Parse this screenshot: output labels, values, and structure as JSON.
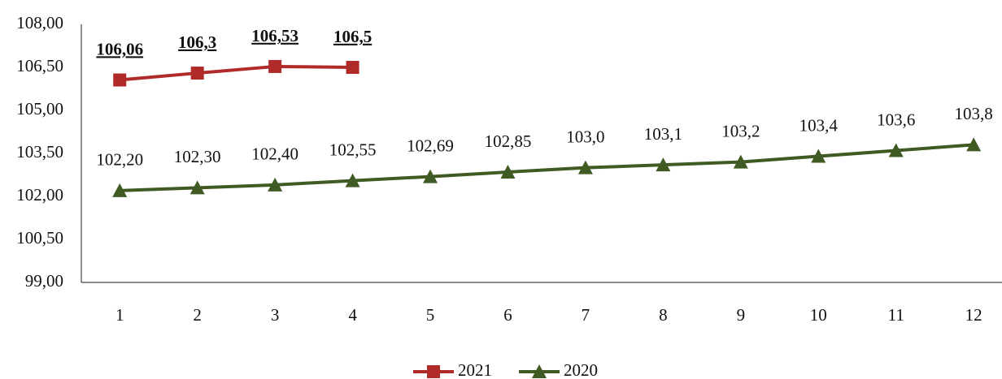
{
  "chart_data": {
    "type": "line",
    "categories": [
      "1",
      "2",
      "3",
      "4",
      "5",
      "6",
      "7",
      "8",
      "9",
      "10",
      "11",
      "12"
    ],
    "series": [
      {
        "name": "2021",
        "color": "#b02a2a",
        "marker": "square",
        "values": [
          106.06,
          106.3,
          106.53,
          106.5,
          null,
          null,
          null,
          null,
          null,
          null,
          null,
          null
        ],
        "value_labels": [
          "106,06",
          "106,3",
          "106,53",
          "106,5",
          null,
          null,
          null,
          null,
          null,
          null,
          null,
          null
        ]
      },
      {
        "name": "2020",
        "color": "#3f5a22",
        "marker": "triangle",
        "values": [
          102.2,
          102.3,
          102.4,
          102.55,
          102.69,
          102.85,
          103.0,
          103.1,
          103.2,
          103.4,
          103.6,
          103.8
        ],
        "value_labels": [
          "102,20",
          "102,30",
          "102,40",
          "102,55",
          "102,69",
          "102,85",
          "103,0",
          "103,1",
          "103,2",
          "103,4",
          "103,6",
          "103,8"
        ]
      }
    ],
    "ylim": [
      99,
      108
    ],
    "yticks": [
      {
        "value": 99,
        "label": "99,00"
      },
      {
        "value": 100.5,
        "label": "100,50"
      },
      {
        "value": 102,
        "label": "102,00"
      },
      {
        "value": 103.5,
        "label": "103,50"
      },
      {
        "value": 105,
        "label": "105,00"
      },
      {
        "value": 106.5,
        "label": "106,50"
      },
      {
        "value": 108,
        "label": "108,00"
      }
    ],
    "grid": false,
    "legend": "bottom"
  }
}
